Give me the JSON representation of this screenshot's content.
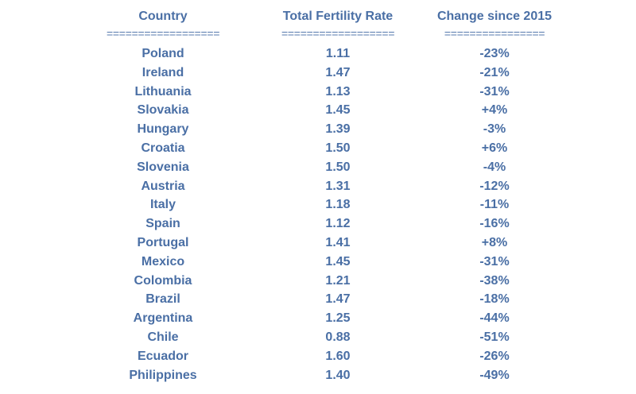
{
  "table": {
    "headers": {
      "country": "Country",
      "tfr": "Total Fertility Rate",
      "change": "Change since 2015"
    },
    "separators": {
      "country": "==================",
      "tfr": "==================",
      "change": "================"
    },
    "rows": [
      {
        "country": "Poland",
        "tfr": "1.11",
        "change": "-23%"
      },
      {
        "country": "Ireland",
        "tfr": "1.47",
        "change": "-21%"
      },
      {
        "country": "Lithuania",
        "tfr": "1.13",
        "change": "-31%"
      },
      {
        "country": "Slovakia",
        "tfr": "1.45",
        "change": "+4%"
      },
      {
        "country": "Hungary",
        "tfr": "1.39",
        "change": "-3%"
      },
      {
        "country": "Croatia",
        "tfr": "1.50",
        "change": "+6%"
      },
      {
        "country": "Slovenia",
        "tfr": "1.50",
        "change": "-4%"
      },
      {
        "country": "Austria",
        "tfr": "1.31",
        "change": "-12%"
      },
      {
        "country": "Italy",
        "tfr": "1.18",
        "change": "-11%"
      },
      {
        "country": "Spain",
        "tfr": "1.12",
        "change": "-16%"
      },
      {
        "country": "Portugal",
        "tfr": "1.41",
        "change": "+8%"
      },
      {
        "country": "Mexico",
        "tfr": "1.45",
        "change": "-31%"
      },
      {
        "country": "Colombia",
        "tfr": "1.21",
        "change": "-38%"
      },
      {
        "country": "Brazil",
        "tfr": "1.47",
        "change": "-18%"
      },
      {
        "country": "Argentina",
        "tfr": "1.25",
        "change": "-44%"
      },
      {
        "country": "Chile",
        "tfr": "0.88",
        "change": "-51%"
      },
      {
        "country": "Ecuador",
        "tfr": "1.60",
        "change": "-26%"
      },
      {
        "country": "Philippines",
        "tfr": "1.40",
        "change": "-49%"
      }
    ]
  },
  "colors": {
    "text": "#4a6fa5",
    "background": "#ffffff"
  }
}
